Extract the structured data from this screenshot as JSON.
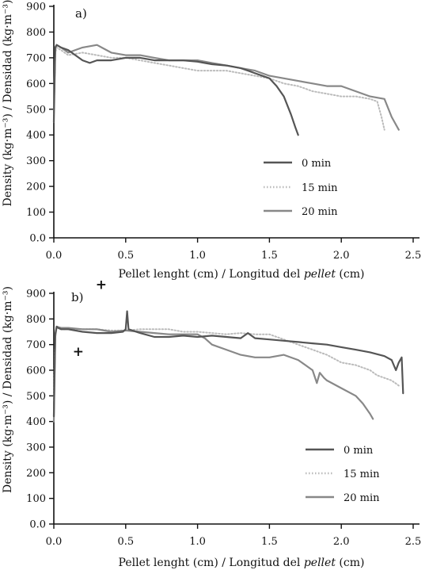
{
  "chart_data": [
    {
      "type": "line",
      "panel_label": "a)",
      "xlabel": "Pellet lenght (cm) / Longitud del ",
      "xlabel_italic": "pellet",
      "xlabel_end": " (cm)",
      "ylabel": "Density (kg·m⁻³) / Densidad (kg·m⁻³)",
      "xlim": [
        0,
        2.5
      ],
      "ylim": [
        0,
        900
      ],
      "x_ticks": [
        0.0,
        0.5,
        1.0,
        1.5,
        2.0,
        2.5
      ],
      "x_tick_labels": [
        "0.0",
        "0.5",
        "1.0",
        "1.5",
        "2.0",
        "2.5"
      ],
      "y_ticks": [
        0,
        100,
        200,
        300,
        400,
        500,
        600,
        700,
        800,
        900
      ],
      "y_tick_labels": [
        "0.0",
        "100",
        "200",
        "300",
        "400",
        "500",
        "600",
        "700",
        "800",
        "900"
      ],
      "legend_position": "center-right",
      "series": [
        {
          "name": "0 min",
          "color": "#555555",
          "style": "solid",
          "x": [
            0.0,
            0.01,
            0.02,
            0.05,
            0.1,
            0.15,
            0.2,
            0.25,
            0.3,
            0.4,
            0.5,
            0.6,
            0.7,
            0.8,
            0.9,
            1.0,
            1.1,
            1.2,
            1.3,
            1.35,
            1.4,
            1.45,
            1.5,
            1.55,
            1.6,
            1.65,
            1.68,
            1.7
          ],
          "y": [
            450,
            740,
            750,
            740,
            730,
            710,
            690,
            680,
            690,
            690,
            700,
            700,
            690,
            690,
            690,
            685,
            675,
            670,
            660,
            650,
            640,
            630,
            620,
            590,
            550,
            480,
            430,
            400
          ]
        },
        {
          "name": "15 min",
          "color": "#bbbbbb",
          "style": "dotted",
          "x": [
            0.0,
            0.01,
            0.02,
            0.05,
            0.1,
            0.2,
            0.3,
            0.4,
            0.5,
            0.6,
            0.7,
            0.8,
            0.9,
            1.0,
            1.1,
            1.2,
            1.3,
            1.4,
            1.5,
            1.6,
            1.7,
            1.8,
            1.9,
            2.0,
            2.1,
            2.2,
            2.25,
            2.28,
            2.3
          ],
          "y": [
            480,
            720,
            740,
            730,
            710,
            720,
            710,
            700,
            700,
            690,
            680,
            670,
            660,
            650,
            650,
            650,
            640,
            630,
            620,
            600,
            590,
            570,
            560,
            550,
            550,
            540,
            530,
            470,
            420
          ]
        },
        {
          "name": "20 min",
          "color": "#888888",
          "style": "solid",
          "x": [
            0.0,
            0.01,
            0.02,
            0.05,
            0.1,
            0.2,
            0.3,
            0.4,
            0.5,
            0.6,
            0.7,
            0.8,
            0.9,
            1.0,
            1.1,
            1.2,
            1.3,
            1.4,
            1.5,
            1.6,
            1.7,
            1.8,
            1.9,
            2.0,
            2.1,
            2.2,
            2.3,
            2.35,
            2.4
          ],
          "y": [
            500,
            740,
            750,
            740,
            720,
            740,
            750,
            720,
            710,
            710,
            700,
            690,
            690,
            690,
            680,
            670,
            660,
            650,
            630,
            620,
            610,
            600,
            590,
            590,
            570,
            550,
            540,
            470,
            420
          ]
        }
      ]
    },
    {
      "type": "line",
      "panel_label": "b)",
      "xlabel": "Pellet lenght (cm) / Longitud del ",
      "xlabel_italic": "pellet",
      "xlabel_end": " (cm)",
      "ylabel": "Density (kg·m⁻³) / Densidad (kg·m⁻³)",
      "xlim": [
        0,
        2.5
      ],
      "ylim": [
        0,
        900
      ],
      "x_ticks": [
        0.0,
        0.5,
        1.0,
        1.5,
        2.0,
        2.5
      ],
      "x_tick_labels": [
        "0.0",
        "0.5",
        "1.0",
        "1.5",
        "2.0",
        "2.5"
      ],
      "y_ticks": [
        0,
        100,
        200,
        300,
        400,
        500,
        600,
        700,
        800,
        900
      ],
      "y_tick_labels": [
        "0.0",
        "100",
        "200",
        "300",
        "400",
        "500",
        "600",
        "700",
        "800",
        "900"
      ],
      "legend_position": "bottom-right",
      "markers": [
        {
          "symbol": "+",
          "x": 0.33,
          "y": 935
        },
        {
          "symbol": "+",
          "x": 0.17,
          "y": 675
        }
      ],
      "series": [
        {
          "name": "0 min",
          "color": "#555555",
          "style": "solid",
          "x": [
            0.0,
            0.01,
            0.02,
            0.03,
            0.05,
            0.1,
            0.2,
            0.3,
            0.4,
            0.48,
            0.5,
            0.51,
            0.52,
            0.6,
            0.7,
            0.8,
            0.9,
            1.0,
            1.1,
            1.2,
            1.3,
            1.35,
            1.4,
            1.5,
            1.6,
            1.7,
            1.8,
            1.9,
            2.0,
            2.1,
            2.2,
            2.3,
            2.35,
            2.38,
            2.4,
            2.42,
            2.43
          ],
          "y": [
            420,
            740,
            770,
            765,
            760,
            760,
            750,
            745,
            745,
            750,
            760,
            830,
            760,
            745,
            730,
            730,
            735,
            730,
            735,
            730,
            725,
            745,
            725,
            720,
            715,
            710,
            705,
            700,
            690,
            680,
            670,
            655,
            640,
            600,
            630,
            650,
            510
          ]
        },
        {
          "name": "15 min",
          "color": "#bbbbbb",
          "style": "dotted",
          "x": [
            0.0,
            0.01,
            0.02,
            0.05,
            0.1,
            0.2,
            0.3,
            0.4,
            0.5,
            0.6,
            0.7,
            0.8,
            0.9,
            1.0,
            1.1,
            1.2,
            1.3,
            1.4,
            1.5,
            1.6,
            1.7,
            1.8,
            1.9,
            2.0,
            2.1,
            2.2,
            2.25,
            2.3,
            2.35,
            2.4
          ],
          "y": [
            480,
            740,
            770,
            760,
            760,
            760,
            760,
            755,
            755,
            760,
            760,
            760,
            750,
            750,
            745,
            740,
            745,
            740,
            740,
            720,
            700,
            680,
            660,
            630,
            620,
            600,
            580,
            570,
            560,
            540
          ]
        },
        {
          "name": "20 min",
          "color": "#888888",
          "style": "solid",
          "x": [
            0.0,
            0.01,
            0.02,
            0.05,
            0.1,
            0.2,
            0.3,
            0.4,
            0.5,
            0.6,
            0.7,
            0.8,
            0.9,
            1.0,
            1.05,
            1.1,
            1.2,
            1.3,
            1.4,
            1.5,
            1.6,
            1.7,
            1.75,
            1.8,
            1.83,
            1.85,
            1.88,
            1.9,
            2.0,
            2.1,
            2.15,
            2.2,
            2.22
          ],
          "y": [
            400,
            730,
            770,
            765,
            765,
            760,
            760,
            750,
            755,
            750,
            745,
            740,
            740,
            740,
            725,
            700,
            680,
            660,
            650,
            650,
            660,
            640,
            620,
            600,
            550,
            590,
            570,
            560,
            530,
            500,
            470,
            430,
            410
          ]
        }
      ]
    }
  ]
}
